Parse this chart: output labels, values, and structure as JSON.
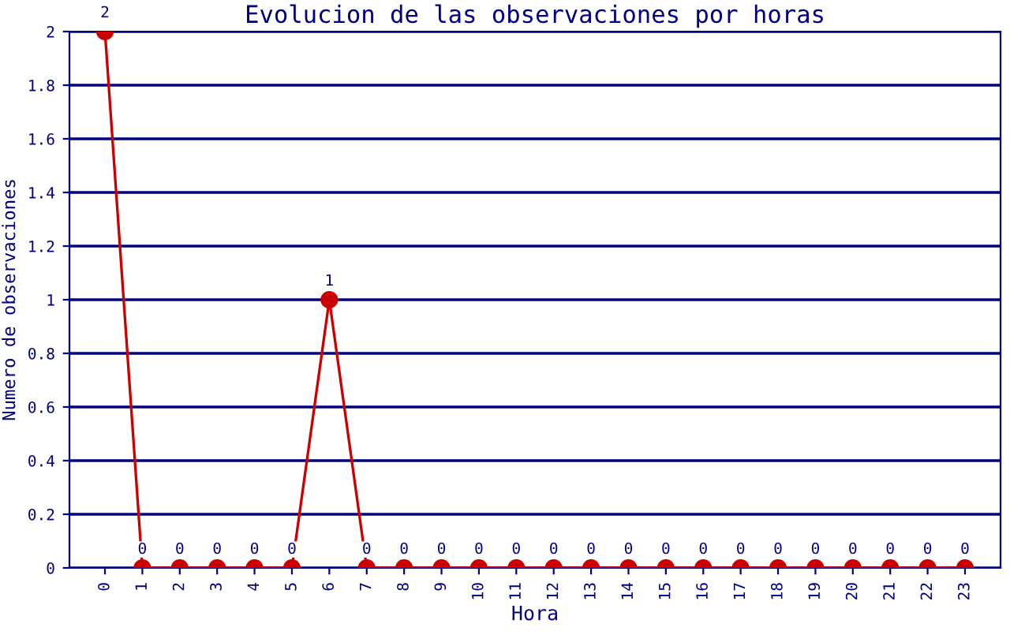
{
  "chart_data": {
    "type": "line",
    "title": "Evolucion de las observaciones por horas",
    "xlabel": "Hora",
    "ylabel": "Numero de observaciones",
    "categories": [
      "0",
      "1",
      "2",
      "3",
      "4",
      "5",
      "6",
      "7",
      "8",
      "9",
      "10",
      "11",
      "12",
      "13",
      "14",
      "15",
      "16",
      "17",
      "18",
      "19",
      "20",
      "21",
      "22",
      "23"
    ],
    "series": [
      {
        "color": "#cc0000",
        "values": [
          2,
          0,
          0,
          0,
          0,
          0,
          1,
          0,
          0,
          0,
          0,
          0,
          0,
          0,
          0,
          0,
          0,
          0,
          0,
          0,
          0,
          0,
          0,
          0
        ]
      }
    ],
    "ylim": [
      0,
      2
    ],
    "yticks": [
      0,
      0.2,
      0.4,
      0.6,
      0.8,
      1,
      1.2,
      1.4,
      1.6,
      1.8,
      2
    ],
    "grid": "y",
    "marker": "circle",
    "line_style": "solid",
    "data_labels": true
  }
}
